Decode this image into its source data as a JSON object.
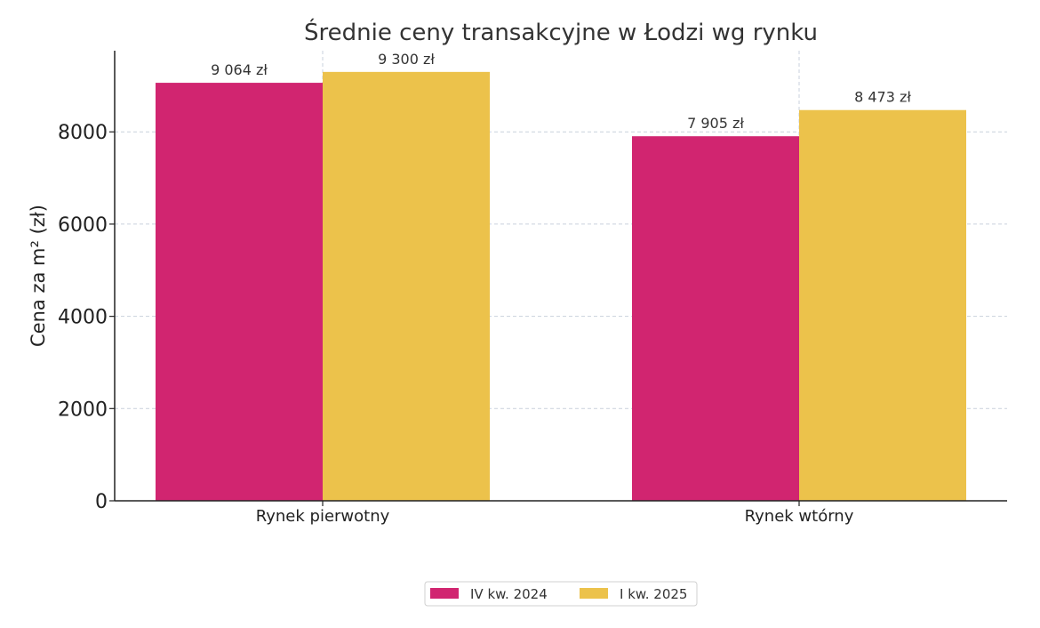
{
  "chart_data": {
    "type": "bar",
    "title": "Średnie ceny transakcyjne w Łodzi wg rynku",
    "ylabel": "Cena za m² (zł)",
    "xlabel": "",
    "categories": [
      "Rynek pierwotny",
      "Rynek wtórny"
    ],
    "series": [
      {
        "name": "IV kw. 2024",
        "color": "#d12570",
        "values": [
          9064,
          7905
        ],
        "labels": [
          "9 064 zł",
          "7 905 zł"
        ]
      },
      {
        "name": "I kw. 2025",
        "color": "#ecc24b",
        "values": [
          9300,
          8473
        ],
        "labels": [
          "9 300 zł",
          "8 473 zł"
        ]
      }
    ],
    "ylim": [
      0,
      9760
    ],
    "yticks": [
      0,
      2000,
      4000,
      6000,
      8000
    ],
    "grid": true,
    "legend_position": "bottom-center"
  }
}
